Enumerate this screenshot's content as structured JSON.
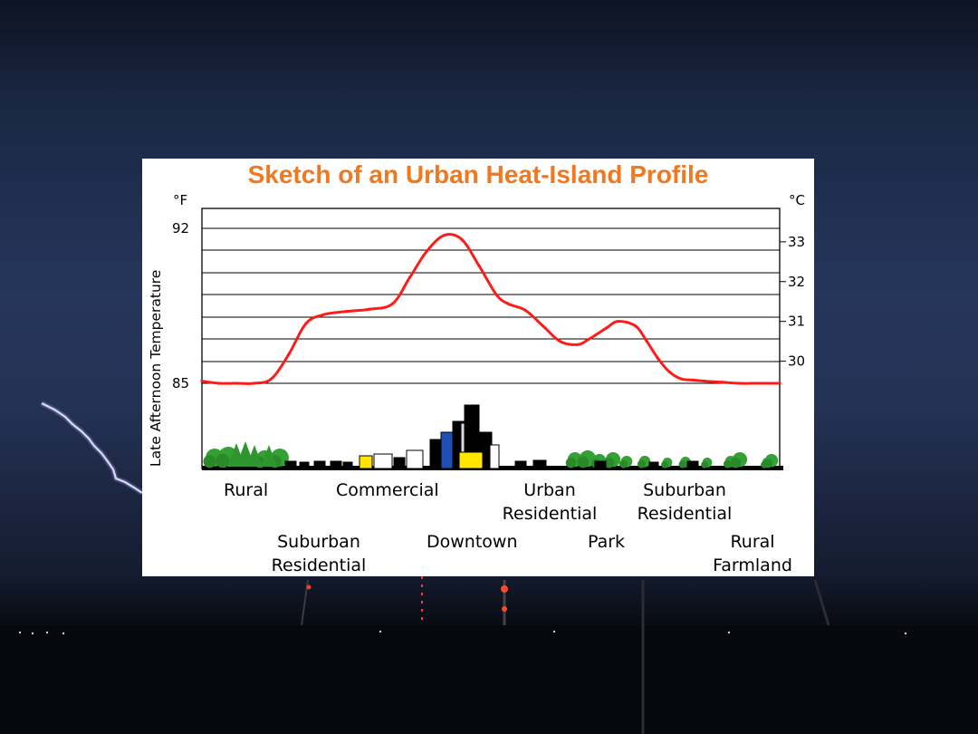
{
  "chart_data": {
    "type": "line",
    "title": "Sketch of an Urban Heat-Island Profile",
    "ylabel": "Late Afternoon Temperature",
    "y_unit_left": "°F",
    "y_unit_right": "°C",
    "y_left_ticks": [
      "92",
      "85"
    ],
    "y_right_ticks": [
      "33",
      "32",
      "31",
      "30"
    ],
    "ylim_f": [
      85,
      92
    ],
    "grid": true,
    "series": [
      {
        "color": "#ff1a1a",
        "x": [
          0,
          0.03,
          0.06,
          0.09,
          0.12,
          0.15,
          0.18,
          0.21,
          0.25,
          0.29,
          0.33,
          0.36,
          0.39,
          0.42,
          0.45,
          0.48,
          0.51,
          0.53,
          0.56,
          0.59,
          0.62,
          0.65,
          0.67,
          0.7,
          0.72,
          0.75,
          0.77,
          0.79,
          0.81,
          0.83,
          0.85,
          0.87,
          0.9,
          0.93,
          0.96,
          1.0
        ],
        "y": [
          85.1,
          85.0,
          85.0,
          85.0,
          85.2,
          86.3,
          87.7,
          88.1,
          88.25,
          88.35,
          88.6,
          89.8,
          91.0,
          91.7,
          91.5,
          90.3,
          89.0,
          88.6,
          88.3,
          87.6,
          86.9,
          86.75,
          87.0,
          87.5,
          87.8,
          87.6,
          86.9,
          86.1,
          85.5,
          85.2,
          85.15,
          85.1,
          85.05,
          85.0,
          85.0,
          85.0
        ]
      }
    ],
    "categories": [
      {
        "name": "rural",
        "label": "Rural"
      },
      {
        "name": "suburban-residential-1",
        "label": "Suburban\nResidential"
      },
      {
        "name": "commercial",
        "label": "Commercial"
      },
      {
        "name": "downtown",
        "label": "Downtown"
      },
      {
        "name": "urban-residential",
        "label": "Urban\nResidential"
      },
      {
        "name": "park",
        "label": "Park"
      },
      {
        "name": "suburban-residential-2",
        "label": "Suburban\nResidential"
      },
      {
        "name": "rural-farmland",
        "label": "Rural\nFarmland"
      }
    ]
  },
  "colors": {
    "title": "#f07820",
    "curve": "#ff1a1a",
    "tree": "#33a133",
    "grid": "#000000"
  }
}
